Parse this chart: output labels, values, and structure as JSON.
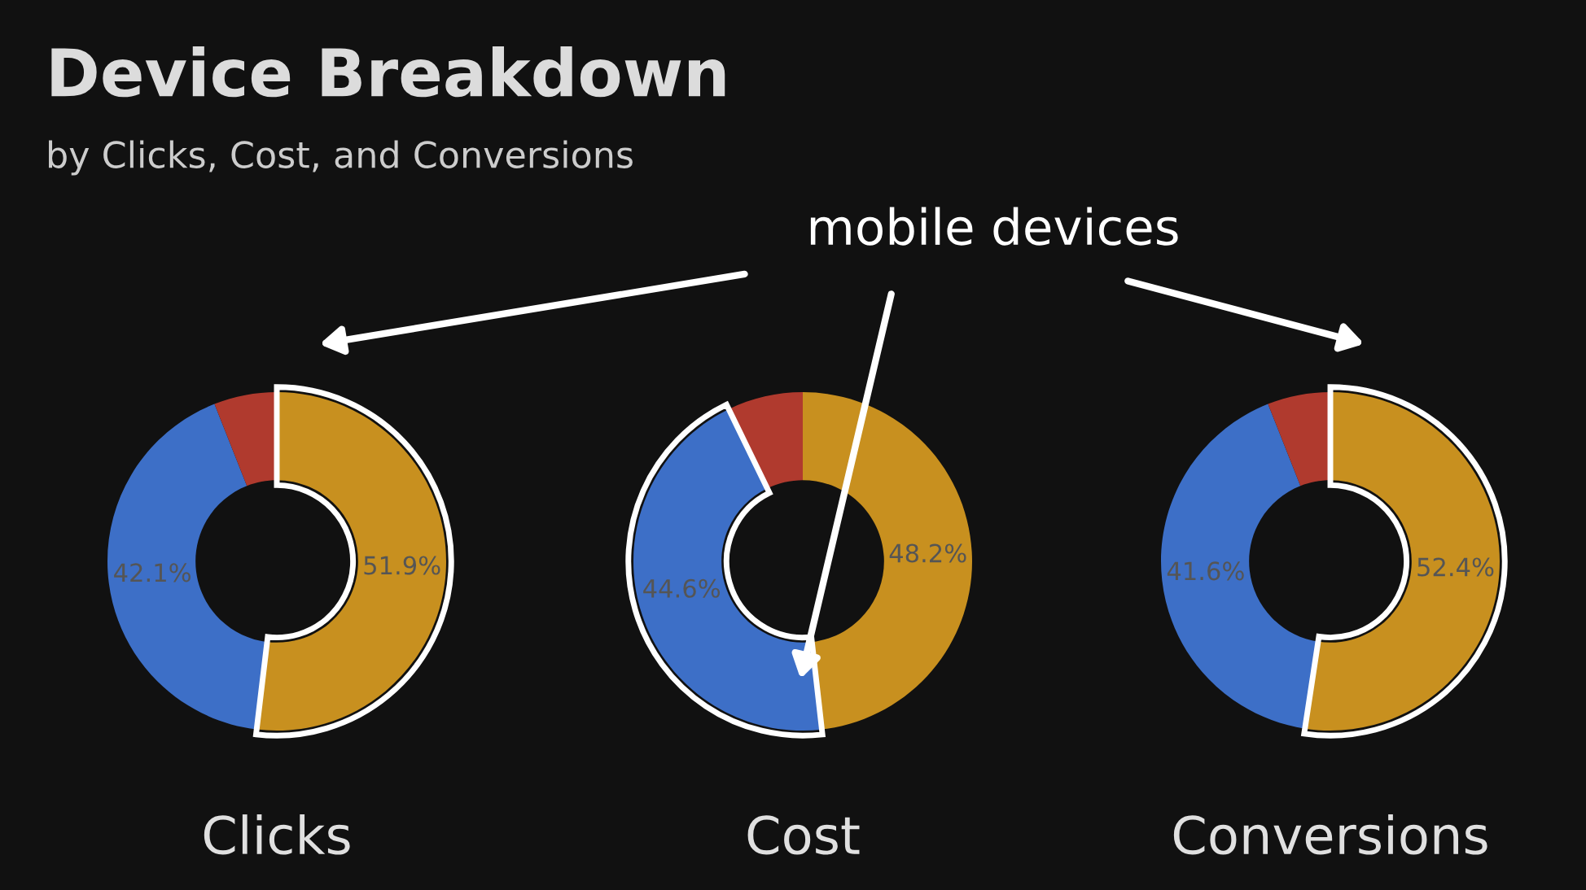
{
  "chart_data": [
    {
      "type": "donut",
      "title": "Clicks",
      "categories": [
        null,
        null,
        null
      ],
      "values": [
        51.9,
        42.1,
        6.0
      ],
      "colors": [
        "#c8901f",
        "#3d6fc7",
        "#b03a2e"
      ],
      "value_labels": [
        "51.9%",
        "42.1%",
        null
      ],
      "annotations": [
        "Device Breakdown",
        "by Clicks, Cost, and Conversions",
        "mobile devices"
      ]
    },
    {
      "type": "donut",
      "title": "Cost",
      "categories": [
        null,
        null,
        null
      ],
      "values": [
        48.2,
        44.6,
        7.2
      ],
      "colors": [
        "#c8901f",
        "#3d6fc7",
        "#b03a2e"
      ],
      "value_labels": [
        "48.2%",
        "44.6%",
        null
      ]
    },
    {
      "type": "donut",
      "title": "Conversions",
      "categories": [
        null,
        null,
        null
      ],
      "values": [
        52.4,
        41.6,
        6.0
      ],
      "colors": [
        "#c8901f",
        "#3d6fc7",
        "#b03a2e"
      ],
      "value_labels": [
        "52.4%",
        "41.6%",
        null
      ]
    }
  ]
}
